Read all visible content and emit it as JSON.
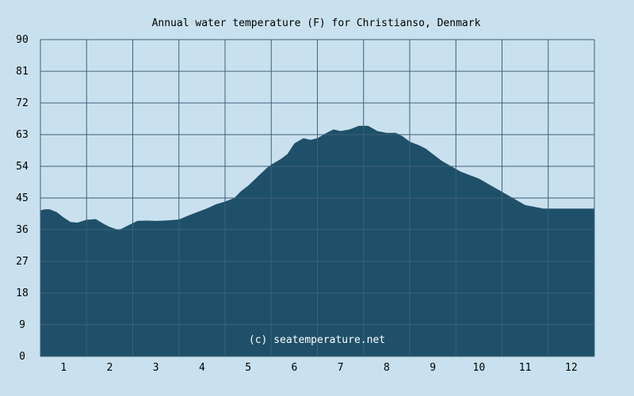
{
  "chart_data": {
    "type": "area",
    "title": "Annual water temperature (F) for Christianso, Denmark",
    "xlabel": "",
    "ylabel": "",
    "ylim": [
      0,
      90
    ],
    "yticks": [
      "0",
      "9",
      "18",
      "27",
      "36",
      "45",
      "54",
      "63",
      "72",
      "81",
      "90"
    ],
    "xticks": [
      "1",
      "2",
      "3",
      "4",
      "5",
      "6",
      "7",
      "8",
      "9",
      "10",
      "11",
      "12"
    ],
    "grid": true,
    "watermark": "(c) seatemperature.net",
    "colors": {
      "background": "#c9e1ee",
      "plot_bg": "#c9e1ee",
      "fill": "#1f5069",
      "grid": "#3f5f78"
    },
    "x": [
      0.5,
      0.6,
      0.7,
      0.85,
      1.0,
      1.15,
      1.3,
      1.5,
      1.7,
      1.85,
      2.0,
      2.2,
      2.4,
      2.6,
      2.8,
      3.0,
      3.2,
      3.5,
      3.7,
      3.9,
      4.1,
      4.3,
      4.5,
      4.7,
      4.85,
      5.0,
      5.2,
      5.4,
      5.5,
      5.7,
      5.85,
      6.0,
      6.2,
      6.35,
      6.5,
      6.7,
      6.85,
      7.0,
      7.2,
      7.4,
      7.6,
      7.8,
      8.0,
      8.2,
      8.35,
      8.5,
      8.7,
      8.85,
      9.0,
      9.2,
      9.4,
      9.6,
      9.8,
      10.0,
      10.2,
      10.4,
      10.6,
      10.8,
      11.0,
      11.2,
      11.4,
      11.6,
      11.8,
      12.0,
      12.2,
      12.35,
      12.5
    ],
    "values": [
      41.5,
      41.8,
      41.8,
      41.0,
      39.5,
      38.2,
      38.0,
      38.8,
      39.0,
      37.8,
      36.8,
      35.9,
      37.2,
      38.5,
      38.6,
      38.5,
      38.6,
      38.9,
      40.0,
      41.0,
      42.0,
      43.2,
      44.0,
      45.0,
      47.0,
      48.5,
      51.0,
      53.5,
      54.5,
      56.0,
      57.5,
      60.5,
      62.0,
      61.5,
      62.0,
      63.5,
      64.5,
      64.0,
      64.5,
      65.5,
      65.5,
      64.0,
      63.5,
      63.5,
      62.5,
      61.0,
      60.0,
      59.0,
      57.5,
      55.5,
      54.0,
      52.5,
      51.5,
      50.5,
      49.0,
      47.5,
      46.0,
      44.5,
      43.0,
      42.5,
      42.0,
      42.0,
      42.0,
      42.0,
      42.0,
      42.0,
      42.0
    ]
  }
}
